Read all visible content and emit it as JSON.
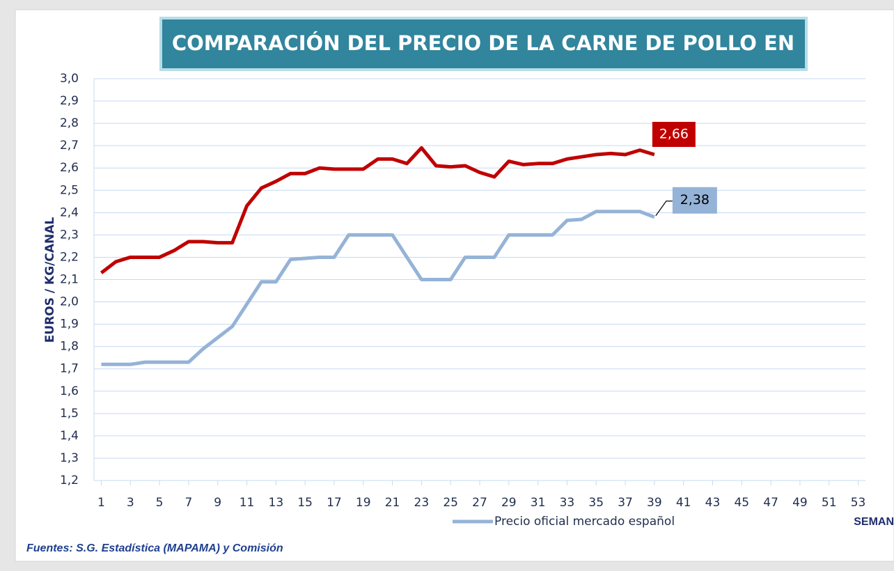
{
  "chart_data": {
    "type": "line",
    "title": "COMPARACIÓN DEL PRECIO DE LA CARNE DE POLLO EN",
    "y_label": "EUROS / KG/CANAL",
    "x_label": "SEMAN",
    "source": "Fuentes: S.G. Estadística (MAPAMA) y Comisión",
    "x": [
      1,
      2,
      3,
      4,
      5,
      6,
      7,
      8,
      9,
      10,
      11,
      12,
      13,
      14,
      15,
      16,
      17,
      18,
      19,
      20,
      21,
      22,
      23,
      24,
      25,
      26,
      27,
      28,
      29,
      30,
      31,
      32,
      33,
      34,
      35,
      36,
      37,
      38,
      39
    ],
    "series": [
      {
        "color": "#c00000",
        "values": [
          2.13,
          2.18,
          2.2,
          2.2,
          2.2,
          2.23,
          2.27,
          2.27,
          2.265,
          2.265,
          2.43,
          2.51,
          2.54,
          2.575,
          2.575,
          2.6,
          2.595,
          2.595,
          2.595,
          2.64,
          2.64,
          2.62,
          2.69,
          2.61,
          2.605,
          2.61,
          2.58,
          2.56,
          2.63,
          2.615,
          2.62,
          2.62,
          2.64,
          2.65,
          2.66,
          2.665,
          2.66,
          2.68,
          2.66
        ],
        "value_labels": [
          null,
          null,
          null,
          null,
          null,
          null,
          null,
          null,
          null,
          null,
          null,
          null,
          null,
          null,
          null,
          null,
          null,
          null,
          null,
          null,
          null,
          null,
          null,
          null,
          null,
          null,
          null,
          null,
          null,
          null,
          null,
          null,
          null,
          null,
          null,
          null,
          null,
          null,
          "2,66"
        ]
      },
      {
        "name": "Precio oficial mercado español",
        "color": "#95b3d7",
        "values": [
          1.72,
          1.72,
          1.72,
          1.73,
          1.73,
          1.73,
          1.73,
          1.79,
          1.84,
          1.89,
          1.99,
          2.09,
          2.09,
          2.19,
          2.195,
          2.2,
          2.2,
          2.3,
          2.3,
          2.3,
          2.3,
          2.2,
          2.1,
          2.1,
          2.1,
          2.2,
          2.2,
          2.2,
          2.3,
          2.3,
          2.3,
          2.3,
          2.365,
          2.37,
          2.405,
          2.405,
          2.405,
          2.405,
          2.38
        ],
        "value_labels": [
          null,
          null,
          null,
          null,
          null,
          null,
          null,
          null,
          null,
          null,
          null,
          null,
          null,
          null,
          null,
          null,
          null,
          null,
          null,
          null,
          null,
          null,
          null,
          null,
          null,
          null,
          null,
          null,
          null,
          null,
          null,
          null,
          null,
          null,
          null,
          null,
          null,
          null,
          "2,38"
        ]
      }
    ],
    "xlim": [
      0.5,
      53.5
    ],
    "xticks": [
      1,
      3,
      5,
      7,
      9,
      11,
      13,
      15,
      17,
      19,
      21,
      23,
      25,
      27,
      29,
      31,
      33,
      35,
      37,
      39,
      41,
      43,
      45,
      47,
      49,
      51,
      53
    ],
    "ylim": [
      1.2,
      3.0
    ],
    "yticks": [
      {
        "value": 1.2,
        "label": "1,2"
      },
      {
        "value": 1.3,
        "label": "1,3"
      },
      {
        "value": 1.4,
        "label": "1,4"
      },
      {
        "value": 1.5,
        "label": "1,5"
      },
      {
        "value": 1.6,
        "label": "1,6"
      },
      {
        "value": 1.7,
        "label": "1,7"
      },
      {
        "value": 1.8,
        "label": "1,8"
      },
      {
        "value": 1.9,
        "label": "1,9"
      },
      {
        "value": 2.0,
        "label": "2,0"
      },
      {
        "value": 2.1,
        "label": "2,1"
      },
      {
        "value": 2.2,
        "label": "2,2"
      },
      {
        "value": 2.3,
        "label": "2,3"
      },
      {
        "value": 2.4,
        "label": "2,4"
      },
      {
        "value": 2.5,
        "label": "2,5"
      },
      {
        "value": 2.6,
        "label": "2,6"
      },
      {
        "value": 2.7,
        "label": "2,7"
      },
      {
        "value": 2.8,
        "label": "2,8"
      },
      {
        "value": 2.9,
        "label": "2,9"
      },
      {
        "value": 3.0,
        "label": "3,0"
      }
    ],
    "grid": true,
    "legend": "bottom"
  }
}
